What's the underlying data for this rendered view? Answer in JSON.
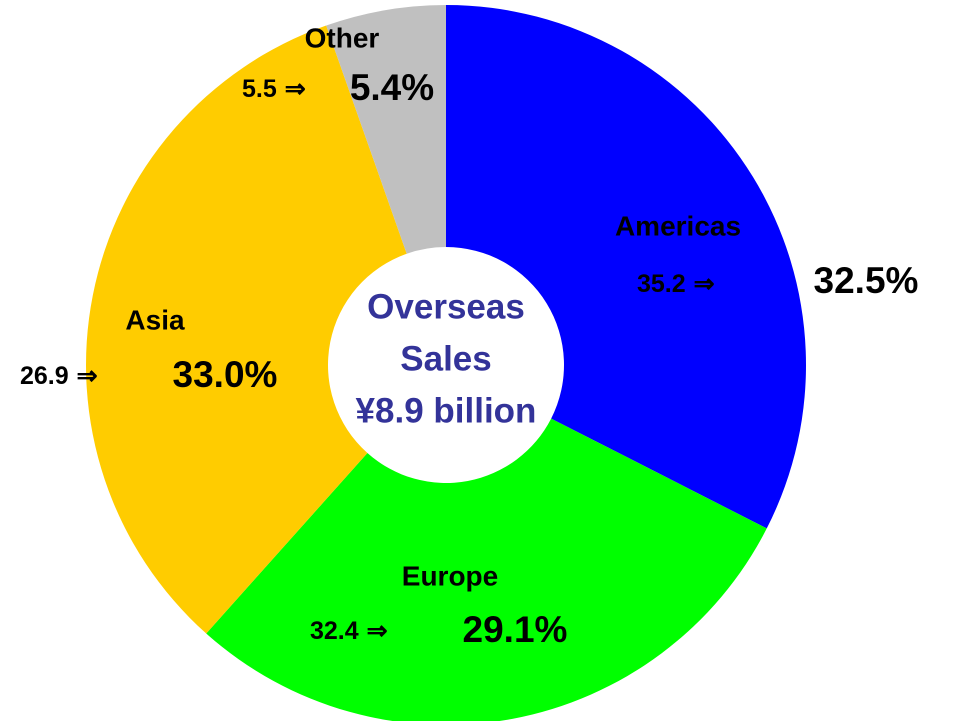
{
  "chart_data": {
    "type": "donut",
    "categories": [
      "Americas",
      "Europe",
      "Asia",
      "Other"
    ],
    "values": [
      32.5,
      29.1,
      33.0,
      5.4
    ],
    "value_labels": [
      "32.5%",
      "29.1%",
      "33.0%",
      "5.4%"
    ],
    "previous_values": [
      35.2,
      32.4,
      26.9,
      5.5
    ],
    "arrow": "⇒",
    "colors": [
      "#0000ff",
      "#00ff00",
      "#ffcc00",
      "#c0c0c0"
    ],
    "center_label": [
      "Overseas",
      "Sales",
      "¥8.9 billion"
    ],
    "center_color": "#333399"
  }
}
